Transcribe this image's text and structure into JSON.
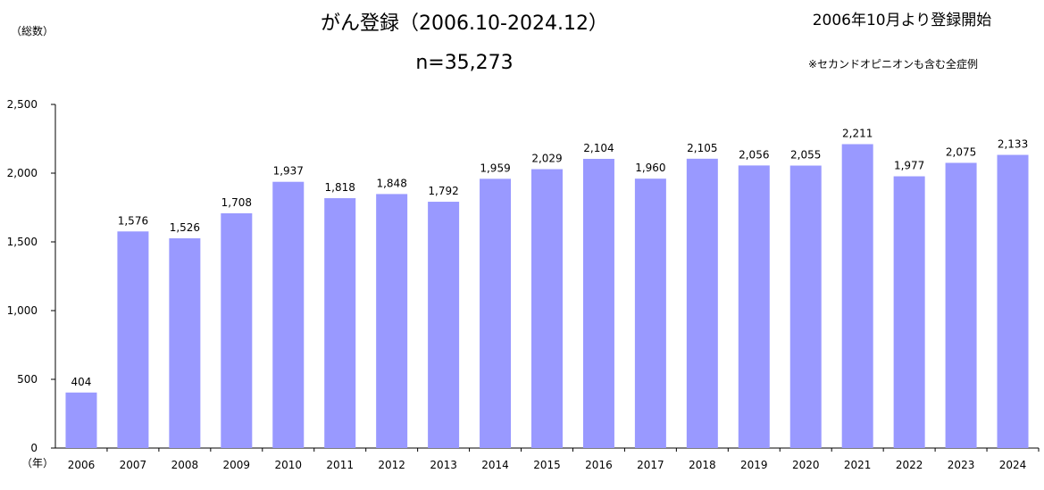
{
  "header": {
    "title": "がん登録（2006.10-2024.12）",
    "total": "n=35,273",
    "start_note": "2006年10月より登録開始",
    "scope_note": "※セカンドオピニオンも含む全症例"
  },
  "chart_data": {
    "type": "bar",
    "title": "がん登録（2006.10-2024.12）",
    "ylabel": "（総数）",
    "xlabel": "（年）",
    "categories": [
      "2006",
      "2007",
      "2008",
      "2009",
      "2010",
      "2011",
      "2012",
      "2013",
      "2014",
      "2015",
      "2016",
      "2017",
      "2018",
      "2019",
      "2020",
      "2021",
      "2022",
      "2023",
      "2024"
    ],
    "values": [
      404,
      1576,
      1526,
      1708,
      1937,
      1818,
      1848,
      1792,
      1959,
      2029,
      2104,
      1960,
      2105,
      2056,
      2055,
      2211,
      1977,
      2075,
      2133
    ],
    "data_labels": [
      "404",
      "1,576",
      "1,526",
      "1,708",
      "1,937",
      "1,818",
      "1,848",
      "1,792",
      "1,959",
      "2,029",
      "2,104",
      "1,960",
      "2,105",
      "2,056",
      "2,055",
      "2,211",
      "1,977",
      "2,075",
      "2,133"
    ],
    "y_ticks": [
      0,
      500,
      1000,
      1500,
      2000,
      2500
    ],
    "y_tick_labels": [
      "0",
      "500",
      "1,000",
      "1,500",
      "2,000",
      "2,500"
    ],
    "ylim": [
      0,
      2500
    ],
    "grid": false,
    "legend": "none",
    "bar_color": "#9999ff"
  }
}
